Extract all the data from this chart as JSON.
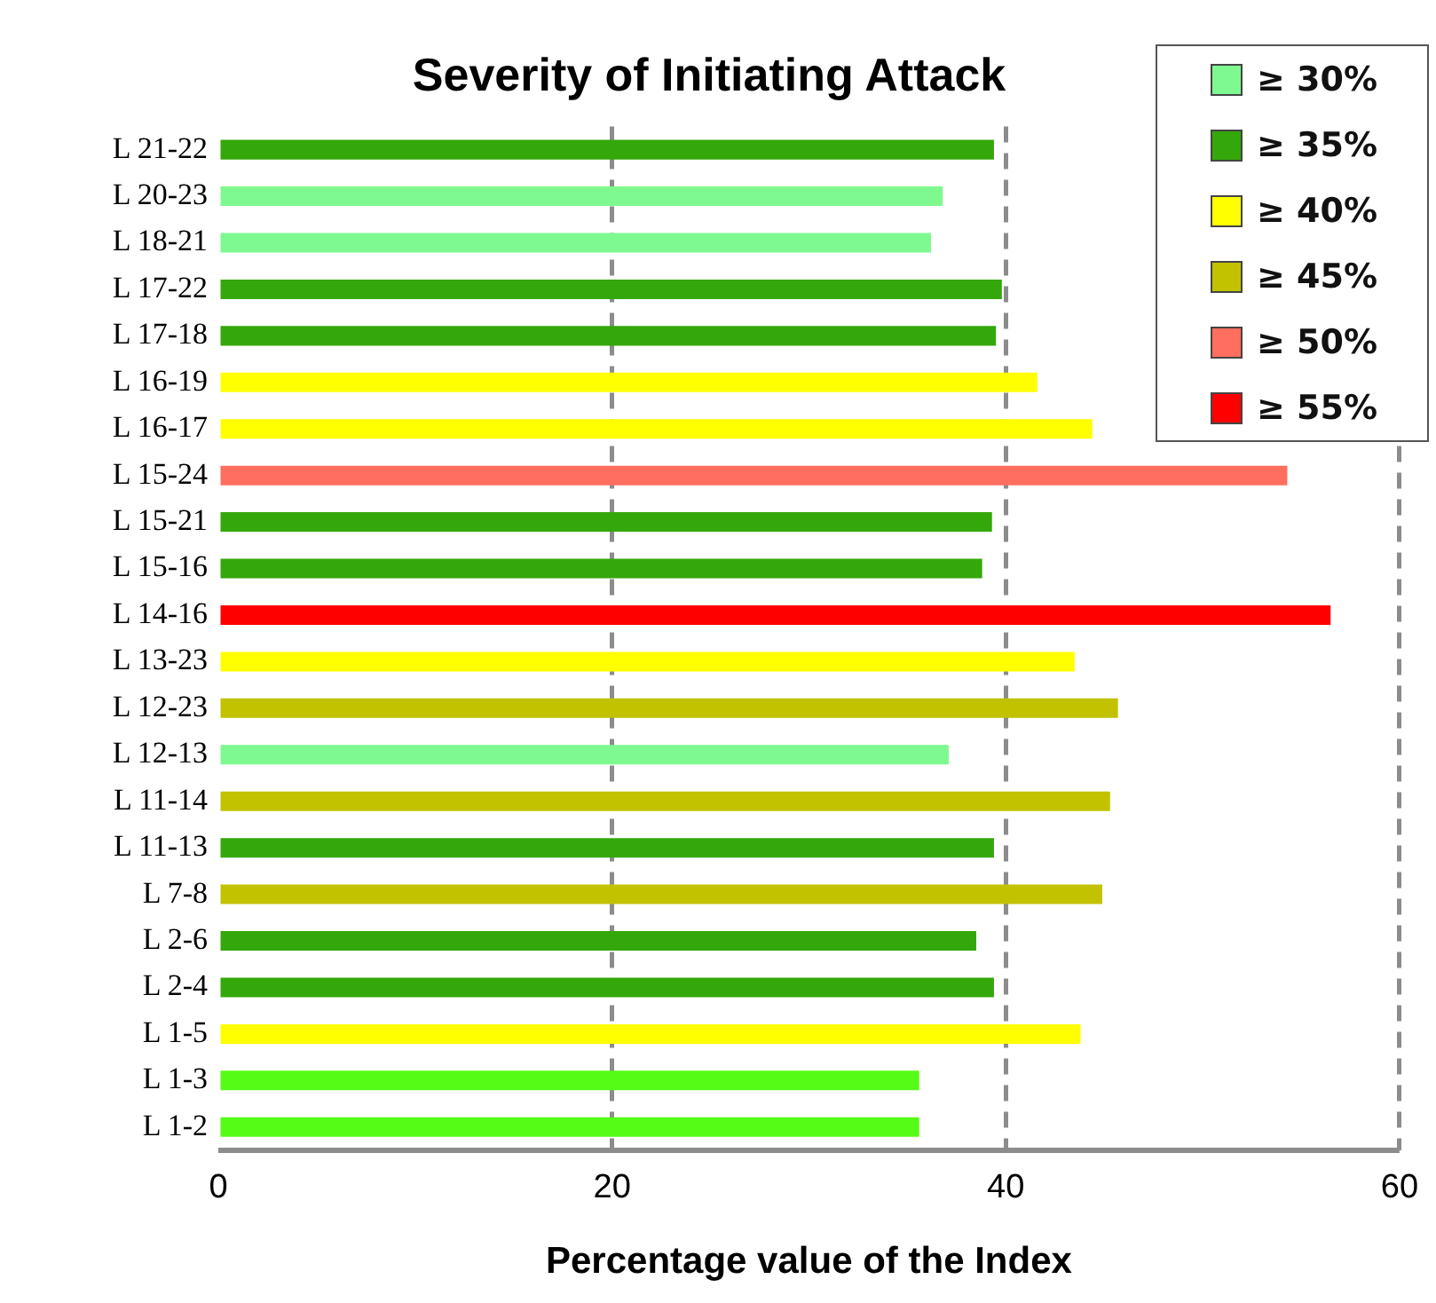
{
  "chart_data": {
    "type": "bar",
    "orientation": "horizontal",
    "stacked": true,
    "title": "Severity of Initiating Attack",
    "xlabel": "Percentage value of the Index",
    "categories": [
      "L 21-22",
      "L 20-23",
      "L 18-21",
      "L 17-22",
      "L 17-18",
      "L 16-19",
      "L 16-17",
      "L 15-24",
      "L 15-21",
      "L 15-16",
      "L 14-16",
      "L 13-23",
      "L 12-23",
      "L 12-13",
      "L 11-14",
      "L 11-13",
      "L 7-8",
      "L 2-6",
      "L 2-4",
      "L 1-5",
      "L 1-3",
      "L 1-2"
    ],
    "series": [
      {
        "name": "≥ 30%",
        "color": "#7ef98f",
        "values": [
          null,
          36.8,
          36.2,
          null,
          null,
          null,
          null,
          null,
          null,
          null,
          null,
          null,
          null,
          37.1,
          null,
          null,
          null,
          null,
          null,
          null,
          null,
          null
        ]
      },
      {
        "name": "≥ 35%",
        "color": "#34a70a",
        "values": [
          39.4,
          null,
          null,
          39.8,
          39.5,
          null,
          null,
          null,
          39.3,
          38.8,
          null,
          null,
          null,
          null,
          null,
          39.4,
          null,
          38.5,
          39.4,
          null,
          null,
          null
        ]
      },
      {
        "name": "≥ 40%",
        "color": "#ffff00",
        "values": [
          null,
          null,
          null,
          null,
          null,
          41.6,
          44.4,
          null,
          null,
          null,
          null,
          43.5,
          null,
          null,
          null,
          null,
          null,
          null,
          null,
          43.8,
          null,
          null
        ]
      },
      {
        "name": "≥ 45%",
        "color": "#c2c200",
        "values": [
          null,
          null,
          null,
          null,
          null,
          null,
          null,
          null,
          null,
          null,
          null,
          null,
          45.7,
          null,
          45.3,
          null,
          44.9,
          null,
          null,
          null,
          null,
          null
        ]
      },
      {
        "name": "≥ 50%",
        "color": "#ff6e5e",
        "values": [
          null,
          null,
          null,
          null,
          null,
          null,
          null,
          54.3,
          null,
          null,
          null,
          null,
          null,
          null,
          null,
          null,
          null,
          null,
          null,
          null,
          null,
          null
        ]
      },
      {
        "name": "≥ 55%",
        "color": "#ff0000",
        "values": [
          null,
          null,
          null,
          null,
          null,
          null,
          null,
          null,
          null,
          null,
          56.5,
          null,
          null,
          null,
          null,
          null,
          null,
          null,
          null,
          null,
          null,
          null
        ]
      },
      {
        "color": "#55fc16",
        "values": [
          null,
          null,
          null,
          null,
          null,
          null,
          null,
          null,
          null,
          null,
          null,
          null,
          null,
          null,
          null,
          null,
          null,
          null,
          null,
          null,
          35.6,
          35.6
        ]
      }
    ],
    "xlim": [
      0,
      60
    ],
    "xticks": [
      0,
      20,
      40,
      60
    ],
    "grid": "x",
    "legend": "top right"
  }
}
